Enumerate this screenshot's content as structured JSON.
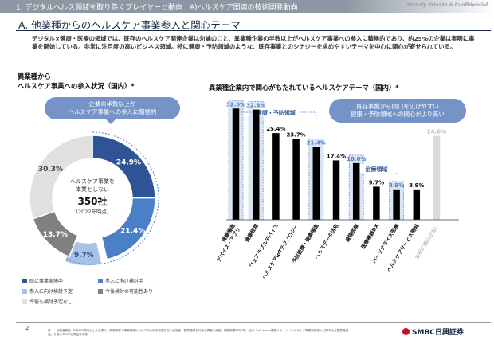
{
  "header": {
    "breadcrumb": "1. デジタルヘルス領域を取り巻くプレイヤーと動向　A)ヘルスケア関連の技術開発動向",
    "confidential": "Strictly Private & Confidential",
    "title": "A. 他業種からのヘルスケア事業参入と関心テーマ",
    "lead": "デジタル×健康・医療の領域では、既存のヘルスケア関連企業は勿論のこと、異業種企業の半数以上がヘルスケア事業への参入に積極的であり、約25%の企業は実際に事業を開始している。非常に注目度の高いビジネス領域。特に健康・予防領域のような、既存事業とのシナジーを求めやすいテーマを中心に関心が寄せられている。"
  },
  "left_section": {
    "title_line1": "異業種から",
    "title_line2": "ヘルスケア事業への参入状況（国内）*",
    "callout": "企業の半数以上が\nヘルスケア事業への参入に積極的",
    "center_label1": "ヘルスケア事業を",
    "center_label2": "本業としない",
    "center_value": "350社",
    "center_sub": "（2022年時点）"
  },
  "right_section": {
    "title": "異業種企業内で関心がもたれているヘルスケアテーマ（国内）*",
    "callout": "既存事業から間口を広げやすい\n健康・予防領域への関心がより高い",
    "group_prevention": "健康・予防領域",
    "group_treatment": "治療領域"
  },
  "colors": {
    "dark_blue": "#2f5496",
    "mid_blue": "#4a80c8",
    "light_blue": "#a8c1e4",
    "gray": "#bfbfbf",
    "light_gray": "#e0e0e0",
    "bar_black": "#000000"
  },
  "chart_data": [
    {
      "type": "pie",
      "title": "異業種からヘルスケア事業への参入状況（国内）*",
      "slices": [
        {
          "label": "既に事業実施中",
          "value": 24.9,
          "display": "24.9%",
          "color": "#2f5496"
        },
        {
          "label": "参入に向け検討中",
          "value": 21.4,
          "display": "21.4%",
          "color": "#4a80c8"
        },
        {
          "label": "参入に向け検討予定",
          "value": 9.7,
          "display": "9.7%",
          "color": "#a8c1e4"
        },
        {
          "label": "今後検討の可能性あり",
          "value": 13.7,
          "display": "13.7%",
          "color": "#808080"
        },
        {
          "label": "今後も検討予定なし",
          "value": 30.3,
          "display": "30.3%",
          "color": "#e0e0e0"
        }
      ]
    },
    {
      "type": "bar",
      "title": "異業種企業内で関心がもたれているヘルスケアテーマ（国内）*",
      "ylim": [
        0,
        35
      ],
      "categories": [
        "健康増進\nデバイス・アプリ",
        "健康経営",
        "ウェアラブルデバイス",
        "ヘルスケアIoTテクノロジー",
        "予防医療・健康増進",
        "ヘルスデータ活用",
        "遠隔医療",
        "医療機器DX",
        "パーソナライズ医療",
        "ヘルスケアサービス開発",
        "左記に関心がない"
      ],
      "values": [
        32.6,
        32.3,
        25.4,
        23.7,
        21.4,
        17.4,
        16.6,
        9.7,
        8.9,
        8.9,
        24.6
      ],
      "labels": [
        "32.6%",
        "32.3%",
        "25.4%",
        "23.7%",
        "21.4%",
        "17.4%",
        "16.6%",
        "9.7%",
        "8.9%",
        "8.9%",
        "24.6%"
      ],
      "highlighted": [
        0,
        1,
        4,
        6,
        8
      ],
      "muted": [
        10
      ]
    }
  ],
  "footer": {
    "page": "2",
    "note": "注　　回答者属性: 年商100億円以上の企業で、新規事業や事業戦略について中心的な役割を担う経営者・管理職層を対象に調査を実施。調査期間2022年。出所: PwC Japan調査レポート「ヘルスケア事業新規参入に関する企業意識調査」を基にSMBC日興証券作成",
    "brand": "SMBC日興証券"
  }
}
